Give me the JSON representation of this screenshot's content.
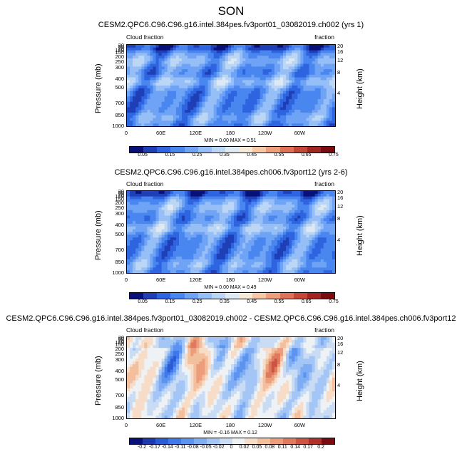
{
  "season": "SON",
  "chart_data": [
    {
      "type": "heatmap",
      "title": "CESM2.QPC6.C96.C96.g16.intel.384pes.fv3port01_03082019.ch002 (yrs 1)",
      "left_label": "Cloud fraction",
      "right_label": "fraction",
      "ylabel": "Pressure (mb)",
      "ylabel_right": "Height (km)",
      "x_ticks": [
        "0",
        "60E",
        "120E",
        "180",
        "120W",
        "60W"
      ],
      "y_ticks": [
        "1000",
        "850",
        "700",
        "500",
        "400",
        "300",
        "250",
        "200",
        "150",
        "100",
        "70",
        "50",
        "30"
      ],
      "y_ticks_right": [
        "4",
        "8",
        "12",
        "16",
        "20"
      ],
      "min_max": "MIN =  0.00  MAX =  0.51",
      "min": 0.0,
      "max": 0.51,
      "colorbar_labels": [
        "0.05",
        "0.15",
        "0.25",
        "0.35",
        "0.45",
        "0.55",
        "0.65",
        "0.75"
      ],
      "colorbar_colors": [
        "#08107a",
        "#1f3fb7",
        "#2f64e0",
        "#4a86ef",
        "#6fa3f5",
        "#97bff7",
        "#bcd6f5",
        "#dfe9f2",
        "#f8ead8",
        "#f6c8a6",
        "#ee9e7b",
        "#de7158",
        "#c44738",
        "#a32521",
        "#7a0b10"
      ]
    },
    {
      "type": "heatmap",
      "title": "CESM2.QPC6.C96.C96.g16.intel.384pes.ch006.fv3port12 (yrs 2-6)",
      "left_label": "Cloud fraction",
      "right_label": "fraction",
      "ylabel": "Pressure (mb)",
      "ylabel_right": "Height (km)",
      "x_ticks": [
        "0",
        "60E",
        "120E",
        "180",
        "120W",
        "60W"
      ],
      "y_ticks": [
        "1000",
        "850",
        "700",
        "500",
        "400",
        "300",
        "250",
        "200",
        "150",
        "100",
        "70",
        "50",
        "30"
      ],
      "y_ticks_right": [
        "4",
        "8",
        "12",
        "16",
        "20"
      ],
      "min_max": "MIN =  0.00  MAX =  0.49",
      "min": 0.0,
      "max": 0.49,
      "colorbar_labels": [
        "0.05",
        "0.15",
        "0.25",
        "0.35",
        "0.45",
        "0.55",
        "0.65",
        "0.75"
      ],
      "colorbar_colors": [
        "#08107a",
        "#1f3fb7",
        "#2f64e0",
        "#4a86ef",
        "#6fa3f5",
        "#97bff7",
        "#bcd6f5",
        "#dfe9f2",
        "#f8ead8",
        "#f6c8a6",
        "#ee9e7b",
        "#de7158",
        "#c44738",
        "#a32521",
        "#7a0b10"
      ]
    },
    {
      "type": "heatmap",
      "title": "CESM2.QPC6.C96.C96.g16.intel.384pes.fv3port01_03082019.ch002 - CESM2.QPC6.C96.C96.g16.intel.384pes.ch006.fv3port12",
      "left_label": "Cloud fraction",
      "right_label": "fraction",
      "ylabel": "Pressure (mb)",
      "ylabel_right": "Height (km)",
      "x_ticks": [
        "0",
        "60E",
        "120E",
        "180",
        "120W",
        "60W"
      ],
      "y_ticks": [
        "1000",
        "850",
        "700",
        "500",
        "400",
        "300",
        "250",
        "200",
        "150",
        "100",
        "70",
        "50",
        "30"
      ],
      "y_ticks_right": [
        "4",
        "8",
        "12",
        "16",
        "20"
      ],
      "min_max": "MIN = -0.16  MAX =  0.12",
      "min": -0.16,
      "max": 0.12,
      "colorbar_labels": [
        "-0.2",
        "-0.17",
        "-0.14",
        "-0.11",
        "-0.08",
        "-0.05",
        "-0.02",
        "0",
        "0.02",
        "0.05",
        "0.08",
        "0.11",
        "0.14",
        "0.17",
        "0.2"
      ],
      "colorbar_colors": [
        "#08107a",
        "#1c3aad",
        "#2c5bd6",
        "#3f78e8",
        "#5c93f0",
        "#7fadf4",
        "#a4c6f6",
        "#c9dcf4",
        "#eef2f4",
        "#f7ddc8",
        "#f4bf9c",
        "#ec9e7c",
        "#df7a5e",
        "#cd5442",
        "#b0302a",
        "#7a0b10"
      ]
    }
  ]
}
